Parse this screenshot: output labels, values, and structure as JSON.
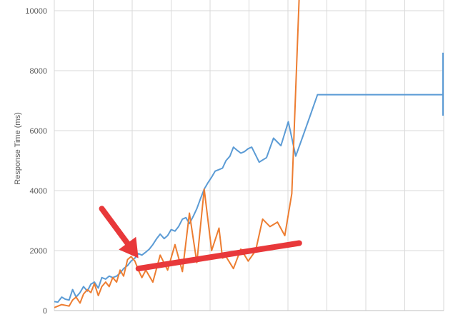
{
  "chart_data": {
    "type": "line",
    "title": "",
    "xlabel": "",
    "ylabel": "Response Time (ms)",
    "ylim": [
      0,
      10000
    ],
    "xlim": [
      0,
      100
    ],
    "yticks": [
      0,
      2000,
      4000,
      6000,
      8000,
      10000
    ],
    "ytick_labels": [
      "0",
      "2000",
      "4000",
      "6000",
      "8000",
      "10000"
    ],
    "xgrid": [
      0,
      10,
      20,
      30,
      40,
      50,
      60,
      70,
      80,
      90,
      100
    ],
    "grid": true,
    "legend": "none",
    "series": [
      {
        "color": "#5B9BD5",
        "x": [
          0.0,
          0.9,
          1.9,
          2.8,
          3.8,
          4.7,
          5.6,
          6.6,
          7.5,
          8.5,
          9.4,
          10.3,
          11.3,
          12.2,
          13.2,
          14.1,
          15.0,
          16.0,
          16.9,
          17.8,
          18.8,
          19.7,
          20.7,
          21.6,
          22.5,
          23.5,
          24.4,
          25.3,
          26.3,
          27.2,
          28.2,
          29.1,
          30.0,
          31.0,
          31.9,
          32.9,
          33.8,
          34.7,
          35.7,
          36.6,
          37.6,
          38.5,
          39.4,
          40.4,
          41.3,
          42.3,
          43.2,
          44.1,
          45.1,
          46.0,
          46.9,
          47.9,
          48.8,
          49.8,
          50.7,
          52.6,
          54.5,
          56.3,
          58.2,
          60.1,
          62.0,
          63.8,
          65.7,
          67.6,
          69.5,
          71.4,
          73.2,
          75.1,
          76.1,
          77.9,
          81.7,
          85.4,
          89.2,
          92.9,
          94.8,
          96.7,
          100.0
        ],
        "y": [
          300,
          280,
          450,
          380,
          350,
          700,
          450,
          600,
          800,
          650,
          880,
          950,
          750,
          1100,
          1050,
          1150,
          1100,
          1150,
          1250,
          1400,
          1500,
          1650,
          1750,
          1900,
          1850,
          1950,
          2050,
          2200,
          2400,
          2550,
          2400,
          2500,
          2700,
          2650,
          2800,
          3050,
          3100,
          2900,
          3150,
          3400,
          3750,
          4050,
          4250,
          4450,
          4650,
          4700,
          4750,
          5000,
          5150,
          5450,
          5350,
          5250,
          5300,
          5400,
          5450,
          4950,
          5100,
          5750,
          5500,
          6300,
          5150,
          5800,
          6500,
          7200,
          7200,
          7200,
          7200,
          7200,
          7200,
          7200,
          7200,
          7200,
          7200,
          7200,
          7200,
          7200,
          7200
        ]
      },
      {
        "color": "#ED7D31",
        "x": [
          0.0,
          1.9,
          3.8,
          4.7,
          5.6,
          6.6,
          7.5,
          8.5,
          9.4,
          10.3,
          11.3,
          12.2,
          13.2,
          14.1,
          15.0,
          16.0,
          16.9,
          17.8,
          18.8,
          19.7,
          20.7,
          21.6,
          22.5,
          23.5,
          25.3,
          27.2,
          29.1,
          31.0,
          32.9,
          34.7,
          36.6,
          38.5,
          40.4,
          42.3,
          43.2,
          44.1,
          46.0,
          47.9,
          49.8,
          51.7,
          53.5,
          55.4,
          57.3,
          59.2,
          61.0,
          62.9,
          64.8,
          66.7,
          68.5,
          70.4,
          72.3,
          74.2,
          76.1,
          77.9,
          79.8,
          81.7
        ],
        "y": [
          100,
          200,
          150,
          350,
          450,
          250,
          550,
          700,
          600,
          900,
          500,
          800,
          950,
          800,
          1100,
          950,
          1350,
          1150,
          1700,
          1800,
          1650,
          1350,
          1100,
          1350,
          950,
          1850,
          1350,
          2200,
          1300,
          3250,
          1600,
          4050,
          2000,
          2750,
          1750,
          1800,
          1400,
          2050,
          1650,
          2000,
          3050,
          2800,
          2950,
          2500,
          3900,
          10500,
          10500,
          10500,
          10500,
          10500,
          10500,
          10500,
          10500,
          10500,
          10500,
          10500
        ]
      }
    ],
    "annotations": [
      {
        "kind": "arrow",
        "color": "#E8383A",
        "from": [
          12.2,
          3400
        ],
        "to": [
          21.6,
          1750
        ]
      },
      {
        "kind": "trend-line",
        "color": "#E8383A",
        "from": [
          21.6,
          1400
        ],
        "to": [
          62.9,
          2250
        ]
      }
    ]
  }
}
